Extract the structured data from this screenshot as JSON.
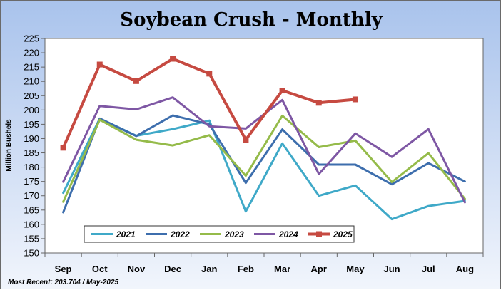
{
  "chart_data": {
    "type": "line",
    "title": "Soybean Crush - Monthly",
    "xlabel": "",
    "ylabel": "Million Bushels",
    "categories": [
      "Sep",
      "Oct",
      "Nov",
      "Dec",
      "Jan",
      "Feb",
      "Mar",
      "Apr",
      "May",
      "Jun",
      "Jul",
      "Aug"
    ],
    "yticks": [
      "150",
      "155",
      "160",
      "165",
      "170",
      "175",
      "180",
      "185",
      "190",
      "195",
      "200",
      "205",
      "210",
      "215",
      "220",
      "225"
    ],
    "ylim": [
      150,
      225
    ],
    "grid": false,
    "legend_position": "bottom-left",
    "series": [
      {
        "name": "2021",
        "color": "#3fa9c8",
        "marker": "none",
        "values": [
          171.0,
          197.0,
          191.0,
          193.3,
          196.3,
          164.5,
          188.3,
          170.0,
          173.6,
          161.8,
          166.4,
          168.2
        ]
      },
      {
        "name": "2022",
        "color": "#3d6ead",
        "marker": "none",
        "values": [
          164.2,
          197.0,
          190.9,
          198.1,
          195.0,
          174.5,
          193.2,
          180.9,
          180.9,
          174.0,
          181.4,
          175.0
        ]
      },
      {
        "name": "2023",
        "color": "#95bb4a",
        "marker": "none",
        "values": [
          167.9,
          196.6,
          189.6,
          187.6,
          191.2,
          177.0,
          198.0,
          187.0,
          189.3,
          174.8,
          184.9,
          168.9
        ]
      },
      {
        "name": "2024",
        "color": "#7e57a4",
        "marker": "none",
        "values": [
          174.9,
          201.4,
          200.2,
          204.4,
          194.3,
          193.5,
          203.5,
          177.6,
          191.8,
          183.6,
          193.3,
          167.7
        ]
      },
      {
        "name": "2025",
        "color": "#c64a41",
        "marker": "square",
        "values": [
          186.8,
          215.9,
          210.1,
          217.9,
          212.7,
          189.6,
          206.8,
          202.5,
          203.704,
          null,
          null,
          null
        ]
      }
    ],
    "footnote": "Most Recent: 203.704 / May-2025"
  }
}
